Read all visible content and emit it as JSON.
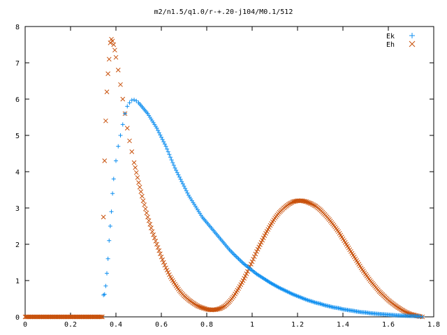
{
  "chart_data": {
    "type": "scatter",
    "title": "m2/n1.5/q1.0/r-+.20-j104/M0.1/512",
    "xlabel": "",
    "ylabel": "",
    "xlim": [
      0,
      1.8
    ],
    "ylim": [
      0,
      8
    ],
    "x_ticks": [
      "0",
      "0.2",
      "0.4",
      "0.6",
      "0.8",
      "1",
      "1.2",
      "1.4",
      "1.6",
      "1.8"
    ],
    "y_ticks": [
      "0",
      "1",
      "2",
      "3",
      "4",
      "5",
      "6",
      "7",
      "8"
    ],
    "grid": false,
    "legend_position": "top-right",
    "series": [
      {
        "name": "Ek",
        "marker": "plus",
        "color": "#0f8ff0",
        "x": [
          0.345,
          0.35,
          0.355,
          0.36,
          0.365,
          0.37,
          0.375,
          0.38,
          0.385,
          0.39,
          0.4,
          0.41,
          0.42,
          0.43,
          0.44,
          0.45,
          0.46,
          0.47,
          0.48,
          0.49,
          0.5,
          0.52,
          0.54,
          0.56,
          0.58,
          0.6,
          0.62,
          0.64,
          0.66,
          0.68,
          0.7,
          0.72,
          0.74,
          0.76,
          0.78,
          0.8,
          0.82,
          0.84,
          0.86,
          0.88,
          0.9,
          0.92,
          0.94,
          0.96,
          0.98,
          1.0,
          1.02,
          1.04,
          1.06,
          1.08,
          1.1,
          1.12,
          1.14,
          1.16,
          1.18,
          1.2,
          1.22,
          1.24,
          1.26,
          1.28,
          1.3,
          1.32,
          1.34,
          1.36,
          1.38,
          1.4,
          1.42,
          1.44,
          1.46,
          1.48,
          1.5,
          1.52,
          1.54,
          1.56,
          1.58,
          1.6,
          1.62,
          1.64,
          1.66,
          1.68,
          1.7,
          1.72,
          1.74,
          1.75
        ],
        "y": [
          0.6,
          0.62,
          0.85,
          1.2,
          1.6,
          2.1,
          2.5,
          2.9,
          3.4,
          3.8,
          4.3,
          4.7,
          5.0,
          5.3,
          5.6,
          5.8,
          5.9,
          5.97,
          5.98,
          5.95,
          5.9,
          5.75,
          5.6,
          5.4,
          5.2,
          4.95,
          4.7,
          4.4,
          4.1,
          3.85,
          3.6,
          3.35,
          3.15,
          2.95,
          2.75,
          2.6,
          2.45,
          2.3,
          2.15,
          2.0,
          1.85,
          1.72,
          1.6,
          1.48,
          1.38,
          1.28,
          1.18,
          1.1,
          1.02,
          0.94,
          0.87,
          0.8,
          0.74,
          0.68,
          0.62,
          0.57,
          0.52,
          0.47,
          0.43,
          0.39,
          0.36,
          0.32,
          0.29,
          0.26,
          0.24,
          0.21,
          0.19,
          0.17,
          0.15,
          0.13,
          0.12,
          0.1,
          0.09,
          0.08,
          0.07,
          0.06,
          0.05,
          0.04,
          0.035,
          0.03,
          0.025,
          0.02,
          0.01,
          0.0
        ]
      },
      {
        "name": "Eh",
        "marker": "cross",
        "color": "#c8500a",
        "x": [
          0.0,
          0.02,
          0.04,
          0.06,
          0.08,
          0.1,
          0.12,
          0.14,
          0.16,
          0.18,
          0.2,
          0.22,
          0.24,
          0.26,
          0.28,
          0.3,
          0.32,
          0.34,
          0.345,
          0.35,
          0.355,
          0.36,
          0.365,
          0.37,
          0.375,
          0.38,
          0.385,
          0.39,
          0.395,
          0.4,
          0.41,
          0.42,
          0.43,
          0.44,
          0.45,
          0.46,
          0.47,
          0.48,
          0.5,
          0.52,
          0.54,
          0.56,
          0.58,
          0.6,
          0.62,
          0.64,
          0.66,
          0.68,
          0.7,
          0.72,
          0.74,
          0.76,
          0.78,
          0.8,
          0.82,
          0.84,
          0.86,
          0.88,
          0.9,
          0.92,
          0.94,
          0.96,
          0.98,
          1.0,
          1.02,
          1.04,
          1.06,
          1.08,
          1.1,
          1.12,
          1.14,
          1.16,
          1.18,
          1.2,
          1.22,
          1.24,
          1.26,
          1.28,
          1.3,
          1.32,
          1.34,
          1.36,
          1.38,
          1.4,
          1.42,
          1.44,
          1.46,
          1.48,
          1.5,
          1.52,
          1.54,
          1.56,
          1.58,
          1.6,
          1.62,
          1.64,
          1.66,
          1.68,
          1.7,
          1.72,
          1.74,
          1.75
        ],
        "y": [
          0,
          0,
          0,
          0,
          0,
          0,
          0,
          0,
          0,
          0,
          0,
          0,
          0,
          0,
          0,
          0,
          0,
          0,
          2.75,
          4.3,
          5.4,
          6.2,
          6.7,
          7.1,
          7.55,
          7.65,
          7.6,
          7.5,
          7.35,
          7.15,
          6.8,
          6.4,
          6.0,
          5.6,
          5.2,
          4.85,
          4.55,
          4.25,
          3.7,
          3.2,
          2.75,
          2.35,
          2.0,
          1.65,
          1.35,
          1.1,
          0.9,
          0.72,
          0.58,
          0.47,
          0.38,
          0.3,
          0.25,
          0.21,
          0.19,
          0.2,
          0.23,
          0.3,
          0.42,
          0.58,
          0.78,
          1.0,
          1.25,
          1.52,
          1.8,
          2.05,
          2.3,
          2.52,
          2.72,
          2.88,
          3.0,
          3.1,
          3.17,
          3.2,
          3.2,
          3.17,
          3.12,
          3.05,
          2.95,
          2.82,
          2.68,
          2.52,
          2.35,
          2.15,
          1.95,
          1.75,
          1.55,
          1.35,
          1.17,
          1.0,
          0.85,
          0.7,
          0.58,
          0.46,
          0.36,
          0.27,
          0.19,
          0.12,
          0.07,
          0.04,
          0.01,
          0.0
        ]
      }
    ]
  }
}
